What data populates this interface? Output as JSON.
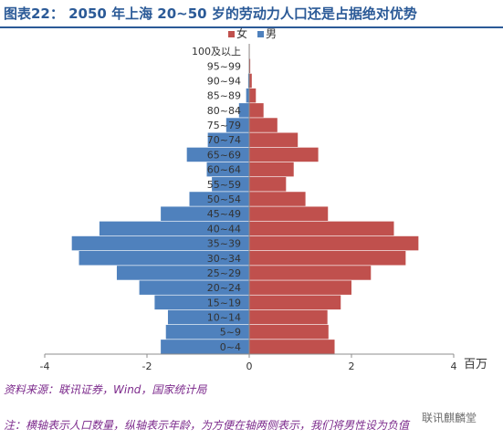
{
  "title": "图表22：  2050 年上海 20~50 岁的劳动力人口还是占据绝对优势",
  "source": "资料来源：联讯证券，Wind，国家统计局",
  "note": "注：横轴表示人口数量，纵轴表示年龄，为方便在轴两侧表示，我们将男性设为负值",
  "watermark": "联讯麒麟堂",
  "colors": {
    "female": "#c0504d",
    "male": "#4f81bd",
    "title": "#2b5a97",
    "note": "#7c2a8c"
  },
  "chart_data": {
    "type": "bar",
    "orientation": "horizontal",
    "unit": "百万",
    "xlim": [
      -4,
      4
    ],
    "xticks": [
      -4,
      -2,
      0,
      2,
      4
    ],
    "legend": "top",
    "grid": false,
    "categories": [
      "0~4",
      "5~9",
      "10~14",
      "15~19",
      "20~24",
      "25~29",
      "30~34",
      "35~39",
      "40~44",
      "45~49",
      "50~54",
      "55~59",
      "60~64",
      "65~69",
      "70~74",
      "75~79",
      "80~84",
      "85~89",
      "90~94",
      "95~99",
      "100及以上"
    ],
    "series": [
      {
        "name": "女",
        "values": [
          1.67,
          1.55,
          1.53,
          1.79,
          2.0,
          2.38,
          3.06,
          3.31,
          2.83,
          1.54,
          1.1,
          0.72,
          0.87,
          1.35,
          0.95,
          0.55,
          0.28,
          0.13,
          0.05,
          0.02,
          0.01
        ]
      },
      {
        "name": "男",
        "values": [
          -1.73,
          -1.63,
          -1.59,
          -1.85,
          -2.15,
          -2.59,
          -3.33,
          -3.47,
          -2.93,
          -1.73,
          -1.17,
          -0.73,
          -0.83,
          -1.22,
          -0.81,
          -0.45,
          -0.2,
          -0.06,
          -0.02,
          0,
          0
        ]
      }
    ]
  }
}
